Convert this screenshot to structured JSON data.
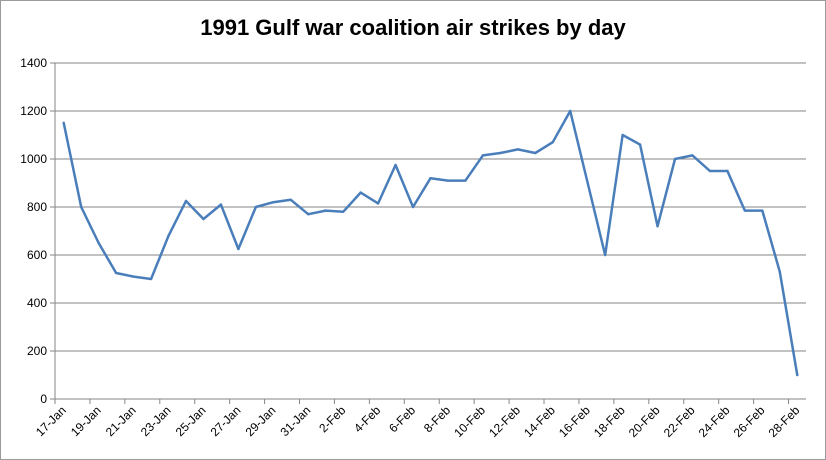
{
  "chart_data": {
    "type": "line",
    "title": "1991 Gulf war coalition air strikes by day",
    "xlabel": "",
    "ylabel": "",
    "ylim": [
      0,
      1400
    ],
    "y_ticks": [
      0,
      200,
      400,
      600,
      800,
      1000,
      1200,
      1400
    ],
    "grid": true,
    "legend": "none",
    "line_color": "#4a7ebb",
    "x": [
      "17-Jan",
      "18-Jan",
      "19-Jan",
      "20-Jan",
      "21-Jan",
      "22-Jan",
      "23-Jan",
      "24-Jan",
      "25-Jan",
      "26-Jan",
      "27-Jan",
      "28-Jan",
      "29-Jan",
      "30-Jan",
      "31-Jan",
      "1-Feb",
      "2-Feb",
      "3-Feb",
      "4-Feb",
      "5-Feb",
      "6-Feb",
      "7-Feb",
      "8-Feb",
      "9-Feb",
      "10-Feb",
      "11-Feb",
      "12-Feb",
      "13-Feb",
      "14-Feb",
      "15-Feb",
      "16-Feb",
      "17-Feb",
      "18-Feb",
      "19-Feb",
      "20-Feb",
      "21-Feb",
      "22-Feb",
      "23-Feb",
      "24-Feb",
      "25-Feb",
      "26-Feb",
      "27-Feb",
      "28-Feb"
    ],
    "x_tick_labels": [
      "17-Jan",
      "19-Jan",
      "21-Jan",
      "23-Jan",
      "25-Jan",
      "27-Jan",
      "29-Jan",
      "31-Jan",
      "2-Feb",
      "4-Feb",
      "6-Feb",
      "8-Feb",
      "10-Feb",
      "12-Feb",
      "14-Feb",
      "16-Feb",
      "18-Feb",
      "20-Feb",
      "22-Feb",
      "24-Feb",
      "26-Feb",
      "28-Feb"
    ],
    "series": [
      {
        "values": [
          1150,
          800,
          650,
          525,
          510,
          500,
          680,
          825,
          750,
          810,
          625,
          800,
          820,
          830,
          770,
          785,
          780,
          860,
          815,
          975,
          800,
          920,
          910,
          910,
          1015,
          1025,
          1040,
          1025,
          1070,
          1200,
          900,
          600,
          1100,
          1060,
          720,
          1000,
          1015,
          950,
          950,
          785,
          785,
          530,
          100
        ]
      }
    ]
  }
}
